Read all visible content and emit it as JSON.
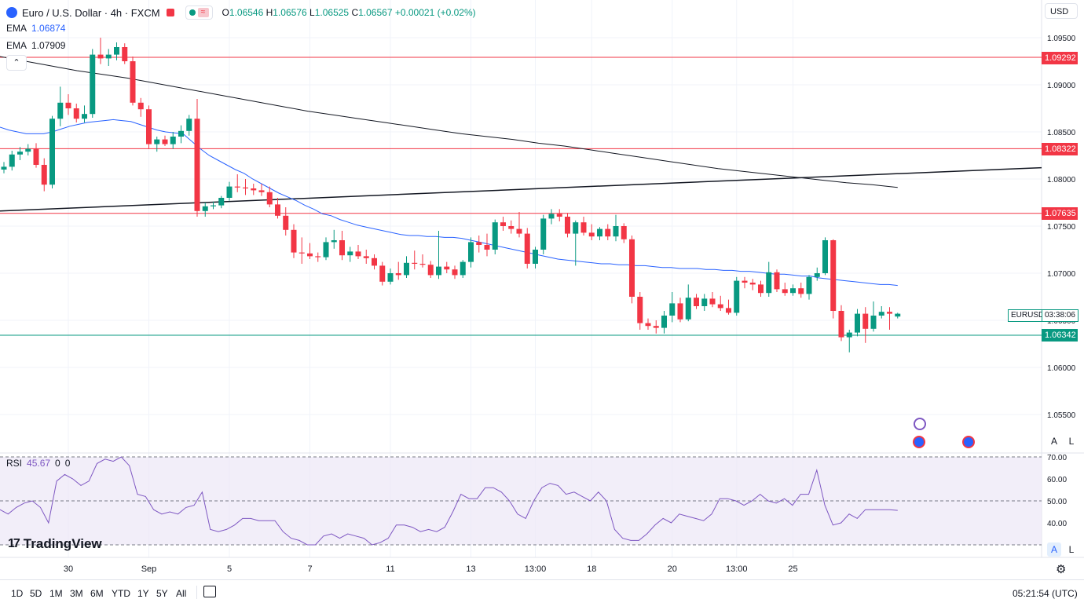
{
  "header": {
    "title": "Euro / U.S. Dollar · 4h · FXCM",
    "indicator_toggle": "≈",
    "ohlc": {
      "open_label": "O",
      "open": "1.06546",
      "high_label": "H",
      "high": "1.06576",
      "low_label": "L",
      "low": "1.06525",
      "close_label": "C",
      "close": "1.06567",
      "change": "+0.00021 (+0.02%)"
    },
    "currency": "USD"
  },
  "indicators": [
    {
      "label": "EMA",
      "value": "1.06874",
      "color": "#2962ff"
    },
    {
      "label": "EMA",
      "value": "1.07909",
      "color": "#131722"
    }
  ],
  "collapse_label": "⌃",
  "price_axis": {
    "ticks": [
      "1.09500",
      "1.09000",
      "1.08500",
      "1.08000",
      "1.07500",
      "1.07000",
      "1.06500",
      "1.06000",
      "1.05500"
    ]
  },
  "levels": [
    {
      "value": "1.09292",
      "color": "#f23645"
    },
    {
      "value": "1.08322",
      "color": "#f23645"
    },
    {
      "value": "1.07635",
      "color": "#f23645"
    },
    {
      "value": "1.06342",
      "color": "#089981"
    }
  ],
  "symbol_tag": {
    "symbol": "EURUSD",
    "countdown": "03:38:06"
  },
  "scale_buttons": {
    "auto": "A",
    "log": "L"
  },
  "rsi": {
    "label": "RSI",
    "value": "45.67",
    "extra1": "0",
    "extra2": "0",
    "ticks": [
      "70.00",
      "60.00",
      "50.00",
      "40.00"
    ],
    "values": [
      46,
      44,
      47,
      49,
      50,
      47,
      40,
      59,
      62,
      60,
      57,
      59,
      67,
      69,
      68,
      70,
      66,
      53,
      52,
      46,
      44,
      45,
      44,
      47,
      48,
      54,
      37,
      36,
      37,
      39,
      42,
      42,
      41,
      41,
      41,
      36,
      33,
      32,
      30,
      30,
      34,
      35,
      33,
      35,
      34,
      33,
      30,
      31,
      33,
      39,
      39,
      38,
      36,
      37,
      36,
      38,
      45,
      53,
      51,
      51,
      56,
      56,
      54,
      50,
      44,
      42,
      50,
      56,
      58,
      57,
      53,
      54,
      52,
      50,
      54,
      50,
      37,
      33,
      32,
      32,
      35,
      39,
      42,
      40,
      44,
      43,
      42,
      41,
      44,
      51,
      51,
      50,
      48,
      50,
      53,
      50,
      49,
      51,
      48,
      53,
      53,
      64,
      48,
      39,
      40,
      44,
      42,
      46,
      46,
      46,
      46,
      45.67
    ],
    "line_color": "#7e57c2",
    "band_color": "#ede7f6"
  },
  "x_axis": {
    "labels": [
      {
        "text": "30",
        "i": 8
      },
      {
        "text": "Sep",
        "i": 18
      },
      {
        "text": "5",
        "i": 28
      },
      {
        "text": "7",
        "i": 38
      },
      {
        "text": "11",
        "i": 48
      },
      {
        "text": "13",
        "i": 58
      },
      {
        "text": "13:00",
        "i": 66
      },
      {
        "text": "18",
        "i": 73
      },
      {
        "text": "20",
        "i": 83
      },
      {
        "text": "13:00",
        "i": 91
      },
      {
        "text": "25",
        "i": 98
      }
    ]
  },
  "chart_data": {
    "type": "candlestick",
    "symbol": "EURUSD",
    "timeframe": "4h",
    "ylim": [
      1.052,
      1.0965
    ],
    "candles": [
      [
        1.081,
        1.0818,
        1.0806,
        1.0813
      ],
      [
        1.0813,
        1.083,
        1.0809,
        1.0826
      ],
      [
        1.0826,
        1.0834,
        1.082,
        1.0829
      ],
      [
        1.0829,
        1.0837,
        1.0825,
        1.0832
      ],
      [
        1.0832,
        1.0838,
        1.0812,
        1.0815
      ],
      [
        1.0815,
        1.0822,
        1.0787,
        1.0794
      ],
      [
        1.0794,
        1.0867,
        1.079,
        1.0864
      ],
      [
        1.0864,
        1.0898,
        1.0856,
        1.0881
      ],
      [
        1.0881,
        1.089,
        1.0868,
        1.0875
      ],
      [
        1.0875,
        1.088,
        1.086,
        1.0864
      ],
      [
        1.0864,
        1.0878,
        1.086,
        1.0869
      ],
      [
        1.0869,
        1.0938,
        1.0865,
        1.0932
      ],
      [
        1.0932,
        1.095,
        1.0922,
        1.0928
      ],
      [
        1.0928,
        1.0938,
        1.092,
        1.0932
      ],
      [
        1.0932,
        1.0945,
        1.0926,
        1.094
      ],
      [
        1.094,
        1.0944,
        1.0922,
        1.0925
      ],
      [
        1.0925,
        1.093,
        1.0878,
        1.0881
      ],
      [
        1.0881,
        1.0886,
        1.0866,
        1.0874
      ],
      [
        1.0874,
        1.0878,
        1.0832,
        1.0837
      ],
      [
        1.0837,
        1.0845,
        1.0829,
        1.0842
      ],
      [
        1.0842,
        1.0846,
        1.0835,
        1.0837
      ],
      [
        1.0837,
        1.085,
        1.0832,
        1.0845
      ],
      [
        1.0845,
        1.0857,
        1.0838,
        1.0851
      ],
      [
        1.0851,
        1.0868,
        1.0846,
        1.0864
      ],
      [
        1.0864,
        1.0885,
        1.076,
        1.0766
      ],
      [
        1.0766,
        1.0775,
        1.076,
        1.0771
      ],
      [
        1.0771,
        1.0776,
        1.0768,
        1.0772
      ],
      [
        1.0772,
        1.0782,
        1.0769,
        1.078
      ],
      [
        1.078,
        1.0797,
        1.0777,
        1.0792
      ],
      [
        1.0792,
        1.0805,
        1.0786,
        1.0791
      ],
      [
        1.0791,
        1.08,
        1.0783,
        1.079
      ],
      [
        1.079,
        1.0795,
        1.0783,
        1.0788
      ],
      [
        1.0788,
        1.0795,
        1.0782,
        1.0786
      ],
      [
        1.0786,
        1.0792,
        1.077,
        1.0773
      ],
      [
        1.0773,
        1.078,
        1.0758,
        1.0761
      ],
      [
        1.0761,
        1.077,
        1.074,
        1.0746
      ],
      [
        1.0746,
        1.0752,
        1.0716,
        1.0722
      ],
      [
        1.0722,
        1.0738,
        1.071,
        1.0721
      ],
      [
        1.0721,
        1.0732,
        1.0715,
        1.0718
      ],
      [
        1.0718,
        1.0722,
        1.0712,
        1.0717
      ],
      [
        1.0717,
        1.0738,
        1.0714,
        1.0733
      ],
      [
        1.0733,
        1.0746,
        1.0726,
        1.0735
      ],
      [
        1.0735,
        1.0745,
        1.0714,
        1.0719
      ],
      [
        1.0719,
        1.0728,
        1.0712,
        1.0723
      ],
      [
        1.0723,
        1.073,
        1.0715,
        1.0718
      ],
      [
        1.0718,
        1.0725,
        1.071,
        1.0716
      ],
      [
        1.0716,
        1.072,
        1.0704,
        1.0708
      ],
      [
        1.0708,
        1.0712,
        1.0687,
        1.0691
      ],
      [
        1.0691,
        1.0705,
        1.0688,
        1.07
      ],
      [
        1.07,
        1.0712,
        1.0693,
        1.0698
      ],
      [
        1.0698,
        1.0718,
        1.0695,
        1.0711
      ],
      [
        1.0711,
        1.0724,
        1.0704,
        1.071
      ],
      [
        1.071,
        1.072,
        1.0706,
        1.0709
      ],
      [
        1.0709,
        1.0713,
        1.0695,
        1.0698
      ],
      [
        1.0698,
        1.0745,
        1.0694,
        1.0707
      ],
      [
        1.0707,
        1.0712,
        1.07,
        1.0704
      ],
      [
        1.0704,
        1.0708,
        1.0694,
        1.0698
      ],
      [
        1.0698,
        1.0714,
        1.0695,
        1.0712
      ],
      [
        1.0712,
        1.0738,
        1.0706,
        1.0733
      ],
      [
        1.0733,
        1.074,
        1.0722,
        1.073
      ],
      [
        1.073,
        1.0742,
        1.0718,
        1.0725
      ],
      [
        1.0725,
        1.0757,
        1.072,
        1.0754
      ],
      [
        1.0754,
        1.076,
        1.0745,
        1.075
      ],
      [
        1.075,
        1.0756,
        1.0742,
        1.0747
      ],
      [
        1.0747,
        1.0765,
        1.0738,
        1.0742
      ],
      [
        1.0742,
        1.0748,
        1.0705,
        1.071
      ],
      [
        1.071,
        1.0728,
        1.0705,
        1.0725
      ],
      [
        1.0725,
        1.0762,
        1.072,
        1.0758
      ],
      [
        1.0758,
        1.0768,
        1.0752,
        1.0763
      ],
      [
        1.0763,
        1.0768,
        1.0755,
        1.076
      ],
      [
        1.076,
        1.0764,
        1.0738,
        1.0742
      ],
      [
        1.0742,
        1.0756,
        1.0708,
        1.0754
      ],
      [
        1.0754,
        1.076,
        1.074,
        1.0743
      ],
      [
        1.0743,
        1.0752,
        1.0735,
        1.0739
      ],
      [
        1.0739,
        1.0749,
        1.0735,
        1.0747
      ],
      [
        1.0747,
        1.0752,
        1.0735,
        1.0739
      ],
      [
        1.0739,
        1.0762,
        1.0734,
        1.075
      ],
      [
        1.075,
        1.0753,
        1.0732,
        1.0736
      ],
      [
        1.0736,
        1.074,
        1.0668,
        1.0675
      ],
      [
        1.0675,
        1.068,
        1.064,
        1.0647
      ],
      [
        1.0647,
        1.0652,
        1.064,
        1.0644
      ],
      [
        1.0644,
        1.065,
        1.0636,
        1.0642
      ],
      [
        1.0642,
        1.066,
        1.0636,
        1.0655
      ],
      [
        1.0655,
        1.068,
        1.0648,
        1.0668
      ],
      [
        1.0668,
        1.0674,
        1.0648,
        1.0651
      ],
      [
        1.0651,
        1.0688,
        1.0649,
        1.0674
      ],
      [
        1.0674,
        1.0678,
        1.0662,
        1.0665
      ],
      [
        1.0665,
        1.0678,
        1.066,
        1.0673
      ],
      [
        1.0673,
        1.068,
        1.0664,
        1.0667
      ],
      [
        1.0667,
        1.0676,
        1.066,
        1.0663
      ],
      [
        1.0663,
        1.0672,
        1.0656,
        1.0658
      ],
      [
        1.0658,
        1.0696,
        1.0655,
        1.0692
      ],
      [
        1.0692,
        1.0696,
        1.0684,
        1.069
      ],
      [
        1.069,
        1.0694,
        1.0682,
        1.0688
      ],
      [
        1.0688,
        1.0692,
        1.0675,
        1.0679
      ],
      [
        1.0679,
        1.0712,
        1.0675,
        1.0701
      ],
      [
        1.0701,
        1.0704,
        1.068,
        1.0683
      ],
      [
        1.0683,
        1.069,
        1.0676,
        1.0679
      ],
      [
        1.0679,
        1.0688,
        1.0676,
        1.0684
      ],
      [
        1.0684,
        1.069,
        1.0674,
        1.0678
      ],
      [
        1.0678,
        1.0698,
        1.0672,
        1.0696
      ],
      [
        1.0696,
        1.0706,
        1.0692,
        1.07
      ],
      [
        1.07,
        1.0738,
        1.0698,
        1.0735
      ],
      [
        1.0735,
        1.0736,
        1.0652,
        1.066
      ],
      [
        1.066,
        1.0666,
        1.0628,
        1.0632
      ],
      [
        1.0632,
        1.064,
        1.0616,
        1.0637
      ],
      [
        1.0637,
        1.0662,
        1.0633,
        1.0657
      ],
      [
        1.0657,
        1.0664,
        1.0626,
        1.0641
      ],
      [
        1.0641,
        1.067,
        1.0638,
        1.0655
      ],
      [
        1.0655,
        1.0665,
        1.0652,
        1.0659
      ],
      [
        1.0659,
        1.0664,
        1.064,
        1.0657
      ],
      [
        1.0654,
        1.0658,
        1.0652,
        1.0657
      ]
    ],
    "ema_fast": [
      1.0855,
      1.0852,
      1.085,
      1.0848,
      1.0848,
      1.0848,
      1.085,
      1.0853,
      1.0856,
      1.0858,
      1.086,
      1.0861,
      1.0862,
      1.0863,
      1.0862,
      1.0861,
      1.0858,
      1.0855,
      1.0852,
      1.085,
      1.0849,
      1.0848,
      1.084,
      1.0832,
      1.0825,
      1.082,
      1.0815,
      1.081,
      1.0806,
      1.08,
      1.0795,
      1.079,
      1.0785,
      1.0781,
      1.0777,
      1.0772,
      1.0768,
      1.0763,
      1.0761,
      1.0757,
      1.0754,
      1.0751,
      1.0749,
      1.0747,
      1.0745,
      1.0743,
      1.0741,
      1.074,
      1.074,
      1.0739,
      1.0739,
      1.0738,
      1.0738,
      1.0737,
      1.0735,
      1.0733,
      1.0731,
      1.0729,
      1.0727,
      1.0725,
      1.0723,
      1.0721,
      1.0719,
      1.0717,
      1.0715,
      1.0714,
      1.0713,
      1.0712,
      1.0711,
      1.071,
      1.071,
      1.0709,
      1.0709,
      1.0708,
      1.0708,
      1.0707,
      1.0706,
      1.0706,
      1.0705,
      1.0705,
      1.0705,
      1.0704,
      1.0704,
      1.0703,
      1.0703,
      1.0702,
      1.0702,
      1.0701,
      1.07,
      1.0699,
      1.0699,
      1.0698,
      1.0697,
      1.0697,
      1.0695,
      1.0694,
      1.0693,
      1.0692,
      1.0691,
      1.069,
      1.0689,
      1.0688,
      1.0688,
      1.0687
    ],
    "ema_slow": [
      1.093,
      1.0925,
      1.092,
      1.0915,
      1.0911,
      1.0907,
      1.0902,
      1.0897,
      1.0892,
      1.0887,
      1.0882,
      1.0877,
      1.0872,
      1.0868,
      1.0864,
      1.086,
      1.0856,
      1.0852,
      1.0848,
      1.0845,
      1.0842,
      1.0838,
      1.0835,
      1.0831,
      1.0827,
      1.0823,
      1.0819,
      1.0815,
      1.0811,
      1.0808,
      1.0805,
      1.0802,
      1.0799,
      1.0796,
      1.0794,
      1.0791
    ],
    "trendline": {
      "from": 1.0766,
      "to": 1.0812
    }
  },
  "bottom_bar": {
    "timeframes": [
      "1D",
      "5D",
      "1M",
      "3M",
      "6M",
      "YTD",
      "1Y",
      "5Y",
      "All"
    ],
    "clock": "05:21:54 (UTC)"
  },
  "branding": "TradingView"
}
